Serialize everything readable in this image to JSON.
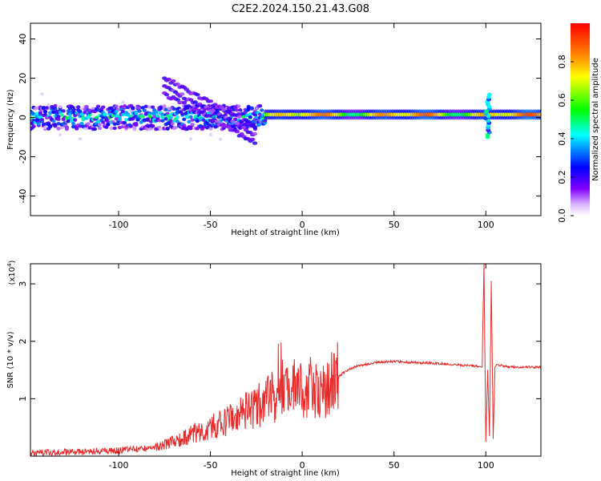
{
  "title": "C2E2.2024.150.21.43.G08",
  "colors": {
    "snr_line": "#e82a2a",
    "frame": "#000000"
  },
  "chart_data": [
    {
      "type": "heatmap",
      "xlabel": "Height of straight line (km)",
      "ylabel": "Frequency (Hz)",
      "xlim": [
        -148,
        130
      ],
      "ylim": [
        -50,
        48
      ],
      "x_ticks": [
        -100,
        -50,
        0,
        50,
        100
      ],
      "x_tick_labels": [
        "-100",
        "-50",
        "0",
        "50",
        "100"
      ],
      "y_ticks": [
        -40,
        -20,
        0,
        20,
        40
      ],
      "y_tick_labels": [
        "-40",
        "-20",
        "0",
        "20",
        "40"
      ],
      "colorbar": {
        "label": "Normalized spectral amplitude",
        "range": [
          0,
          1
        ],
        "ticks": [
          0,
          0.2,
          0.4,
          0.6,
          0.8
        ],
        "tick_labels": [
          "0.0",
          "0.2",
          "0.4",
          "0.6",
          "0.8"
        ],
        "colormap": [
          "#ffffff",
          "#d9b3ff",
          "#8000ff",
          "#0000ff",
          "#00ffff",
          "#00ff00",
          "#ffff00",
          "#ff8000",
          "#ff0000"
        ]
      },
      "features": [
        {
          "x_range": [
            -148,
            -20
          ],
          "frequency_center": 0,
          "frequency_spread": 6,
          "amplitude": 0.5
        },
        {
          "x_range": [
            -75,
            -25
          ],
          "frequency_start": 20,
          "frequency_end": -5,
          "amplitude": 0.3
        },
        {
          "x_range": [
            -20,
            130
          ],
          "frequency_center": 1.5,
          "frequency_spread": 1.5,
          "amplitude": 0.95
        },
        {
          "x_range": [
            98,
            104
          ],
          "frequency_min": -10,
          "frequency_max": 12,
          "amplitude": 0.5
        }
      ],
      "grid": false
    },
    {
      "type": "line",
      "xlabel": "Height of straight line (km)",
      "ylabel": "SNR (10 * v/v)",
      "y_multiplier": "(x10",
      "y_multiplier_exp": "4",
      "xlim": [
        -148,
        130
      ],
      "ylim": [
        0,
        3.35
      ],
      "x_ticks": [
        -100,
        -50,
        0,
        50,
        100
      ],
      "x_tick_labels": [
        "-100",
        "-50",
        "0",
        "50",
        "100"
      ],
      "y_ticks": [
        1,
        2,
        3
      ],
      "y_tick_labels": [
        "1",
        "2",
        "3"
      ],
      "x": [
        -148,
        -140,
        -130,
        -120,
        -110,
        -100,
        -90,
        -80,
        -70,
        -65,
        -60,
        -55,
        -50,
        -45,
        -40,
        -35,
        -30,
        -25,
        -20,
        -15,
        -12,
        -10,
        -8,
        -5,
        0,
        5,
        10,
        15,
        20,
        25,
        30,
        40,
        50,
        60,
        70,
        80,
        90,
        95,
        98,
        99,
        100,
        101,
        102,
        103,
        104,
        105,
        106,
        110,
        120,
        130
      ],
      "y": [
        0.05,
        0.06,
        0.07,
        0.08,
        0.09,
        0.1,
        0.12,
        0.15,
        0.25,
        0.3,
        0.38,
        0.45,
        0.5,
        0.55,
        0.62,
        0.7,
        0.78,
        0.85,
        0.95,
        1.05,
        1.55,
        1.0,
        1.1,
        1.2,
        1.15,
        1.25,
        1.05,
        1.25,
        1.4,
        1.5,
        1.57,
        1.63,
        1.65,
        1.63,
        1.62,
        1.6,
        1.58,
        1.56,
        1.55,
        3.35,
        0.25,
        1.5,
        0.35,
        3.05,
        0.3,
        1.55,
        1.6,
        1.56,
        1.55,
        1.55
      ],
      "grid": false
    }
  ]
}
